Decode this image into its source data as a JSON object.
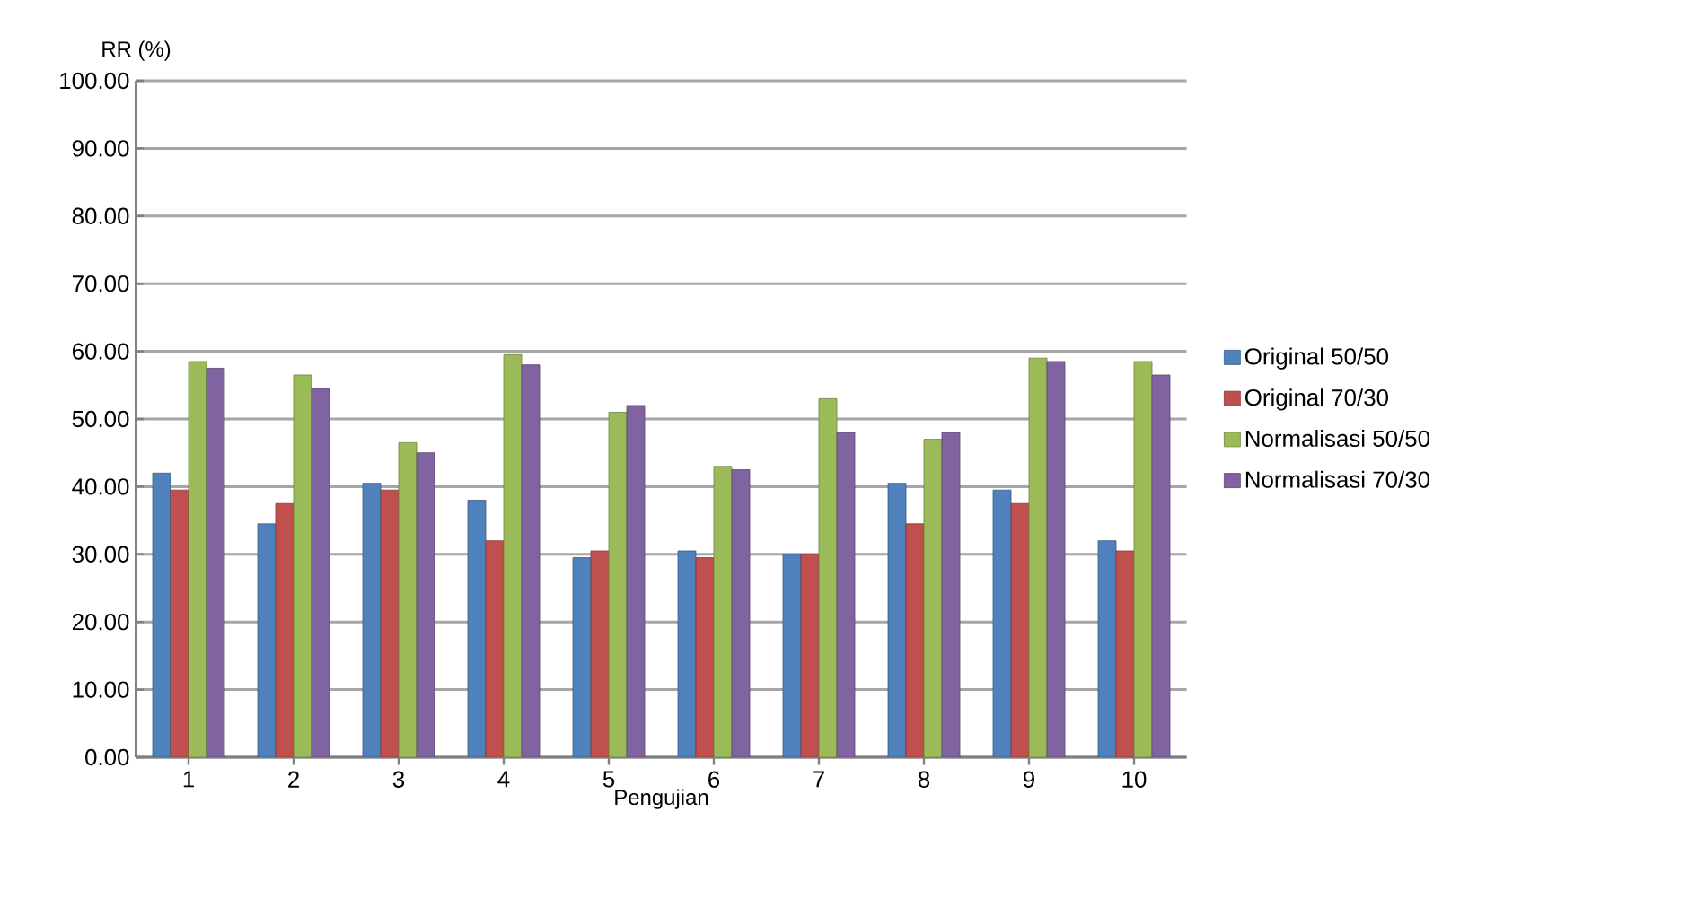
{
  "chart_data": {
    "type": "bar",
    "xlabel": "Pengujian",
    "ylabel": "RR (%)",
    "categories": [
      "1",
      "2",
      "3",
      "4",
      "5",
      "6",
      "7",
      "8",
      "9",
      "10"
    ],
    "series": [
      {
        "name": "Original 50/50",
        "color": "#4f81bd",
        "values": [
          42,
          34.5,
          40.5,
          38,
          29.5,
          30.5,
          30,
          40.5,
          39.5,
          32
        ]
      },
      {
        "name": "Original 70/30",
        "color": "#c0504d",
        "values": [
          39.5,
          37.5,
          39.5,
          32,
          30.5,
          29.5,
          30,
          34.5,
          37.5,
          30.5
        ]
      },
      {
        "name": "Normalisasi 50/50",
        "color": "#9bbb59",
        "values": [
          58.5,
          56.5,
          46.5,
          59.5,
          51,
          43,
          53,
          47,
          59,
          58.5
        ]
      },
      {
        "name": "Normalisasi 70/30",
        "color": "#8064a2",
        "values": [
          57.5,
          54.5,
          45,
          58,
          52,
          42.5,
          48,
          48,
          58.5,
          56.5
        ]
      }
    ],
    "ylim": [
      0,
      100
    ],
    "yticks": [
      {
        "value": 0,
        "label": "0.00"
      },
      {
        "value": 10,
        "label": "10.00"
      },
      {
        "value": 20,
        "label": "20.00"
      },
      {
        "value": 30,
        "label": "30.00"
      },
      {
        "value": 40,
        "label": "40.00"
      },
      {
        "value": 50,
        "label": "50.00"
      },
      {
        "value": 60,
        "label": "60.00"
      },
      {
        "value": 70,
        "label": "70.00"
      },
      {
        "value": 80,
        "label": "80.00"
      },
      {
        "value": 90,
        "label": "90.00"
      },
      {
        "value": 100,
        "label": "100.00"
      }
    ],
    "grid": "y",
    "legend": "right"
  }
}
